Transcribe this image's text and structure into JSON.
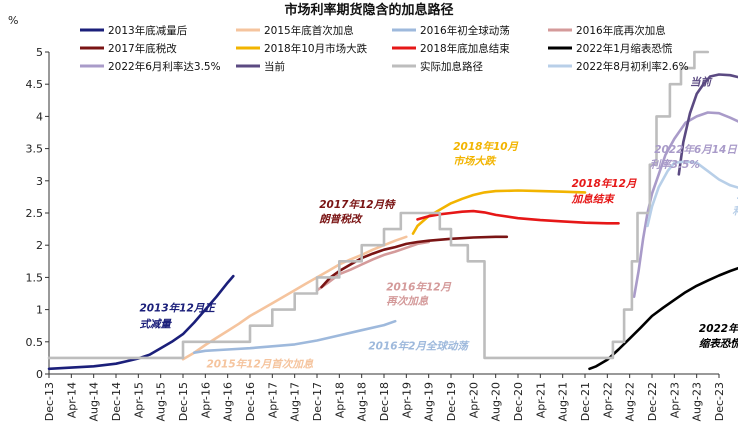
{
  "chart_data": {
    "type": "line",
    "title": "市场利率期货隐含的加息路径",
    "ylabel": "%",
    "ylim": [
      0,
      5
    ],
    "yticks": [
      "0",
      "0.5",
      "1",
      "1.5",
      "2",
      "2.5",
      "3",
      "3.5",
      "4",
      "4.5",
      "5"
    ],
    "xlabels": [
      "Dec-13",
      "Apr-14",
      "Aug-14",
      "Dec-14",
      "Apr-15",
      "Aug-15",
      "Dec-15",
      "Apr-16",
      "Aug-16",
      "Dec-16",
      "Apr-17",
      "Aug-17",
      "Dec-17",
      "Apr-18",
      "Aug-18",
      "Dec-18",
      "Apr-19",
      "Aug-19",
      "Dec-19",
      "Apr-20",
      "Aug-20",
      "Dec-20",
      "Apr-21",
      "Aug-21",
      "Dec-21",
      "Apr-22",
      "Aug-22",
      "Dec-22",
      "Apr-23",
      "Aug-23",
      "Dec-23"
    ],
    "series": [
      {
        "name": "2013年底减量后",
        "color": "#1b1f7a",
        "points": [
          [
            0,
            0.08
          ],
          [
            1,
            0.1
          ],
          [
            2,
            0.12
          ],
          [
            3,
            0.16
          ],
          [
            4,
            0.24
          ],
          [
            4.5,
            0.3
          ],
          [
            5,
            0.4
          ],
          [
            5.5,
            0.5
          ],
          [
            6,
            0.62
          ],
          [
            6.5,
            0.8
          ],
          [
            7,
            1.0
          ],
          [
            7.5,
            1.2
          ],
          [
            8,
            1.42
          ],
          [
            8.25,
            1.52
          ]
        ]
      },
      {
        "name": "2015年底首次加息",
        "color": "#f5c49e",
        "points": [
          [
            6,
            0.23
          ],
          [
            6.5,
            0.33
          ],
          [
            7,
            0.45
          ],
          [
            7.5,
            0.56
          ],
          [
            8,
            0.67
          ],
          [
            8.5,
            0.78
          ],
          [
            9,
            0.9
          ],
          [
            9.5,
            1.0
          ],
          [
            10,
            1.1
          ],
          [
            10.5,
            1.2
          ],
          [
            11,
            1.3
          ],
          [
            11.5,
            1.4
          ],
          [
            12,
            1.5
          ],
          [
            12.5,
            1.6
          ],
          [
            13,
            1.7
          ],
          [
            13.5,
            1.78
          ],
          [
            14,
            1.85
          ],
          [
            14.5,
            1.93
          ],
          [
            15,
            2.0
          ],
          [
            15.5,
            2.07
          ],
          [
            16,
            2.13
          ]
        ]
      },
      {
        "name": "2016年初全球动荡",
        "color": "#9eb9dc",
        "points": [
          [
            6.5,
            0.33
          ],
          [
            7,
            0.36
          ],
          [
            8,
            0.38
          ],
          [
            9,
            0.4
          ],
          [
            10,
            0.43
          ],
          [
            11,
            0.46
          ],
          [
            12,
            0.52
          ],
          [
            13,
            0.6
          ],
          [
            14,
            0.68
          ],
          [
            15,
            0.76
          ],
          [
            15.5,
            0.82
          ]
        ]
      },
      {
        "name": "2016年底再次加息",
        "color": "#d49a9a",
        "points": [
          [
            12,
            1.3
          ],
          [
            12.5,
            1.42
          ],
          [
            13,
            1.55
          ],
          [
            13.5,
            1.62
          ],
          [
            14,
            1.7
          ],
          [
            14.5,
            1.78
          ],
          [
            15,
            1.85
          ],
          [
            15.5,
            1.9
          ],
          [
            16,
            1.96
          ],
          [
            16.5,
            2.02
          ],
          [
            17,
            2.05
          ]
        ]
      },
      {
        "name": "2017年底税改",
        "color": "#7a1414",
        "points": [
          [
            12.2,
            1.35
          ],
          [
            12.6,
            1.5
          ],
          [
            13,
            1.6
          ],
          [
            13.5,
            1.7
          ],
          [
            14,
            1.8
          ],
          [
            14.5,
            1.87
          ],
          [
            15,
            1.93
          ],
          [
            15.5,
            1.97
          ],
          [
            16,
            2.02
          ],
          [
            16.5,
            2.05
          ],
          [
            17,
            2.07
          ],
          [
            18,
            2.1
          ],
          [
            19,
            2.12
          ],
          [
            20,
            2.13
          ],
          [
            20.5,
            2.13
          ]
        ]
      },
      {
        "name": "2018年10月市场大跌",
        "color": "#f2b400",
        "points": [
          [
            16.3,
            2.18
          ],
          [
            16.5,
            2.3
          ],
          [
            17,
            2.45
          ],
          [
            17.5,
            2.55
          ],
          [
            18,
            2.65
          ],
          [
            18.5,
            2.72
          ],
          [
            19,
            2.78
          ],
          [
            19.5,
            2.82
          ],
          [
            20,
            2.84
          ],
          [
            21,
            2.85
          ],
          [
            22,
            2.84
          ],
          [
            23,
            2.83
          ],
          [
            24,
            2.82
          ]
        ]
      },
      {
        "name": "2018年底加息结束",
        "color": "#e61717",
        "points": [
          [
            16.5,
            2.4
          ],
          [
            17,
            2.45
          ],
          [
            17.5,
            2.48
          ],
          [
            18,
            2.5
          ],
          [
            18.5,
            2.52
          ],
          [
            19,
            2.53
          ],
          [
            19.5,
            2.51
          ],
          [
            20,
            2.47
          ],
          [
            21,
            2.42
          ],
          [
            22,
            2.39
          ],
          [
            23,
            2.37
          ],
          [
            24,
            2.35
          ],
          [
            25,
            2.34
          ],
          [
            25.5,
            2.34
          ]
        ]
      },
      {
        "name": "2022年1月缩表恐慌",
        "color": "#000000",
        "points": [
          [
            24.2,
            0.08
          ],
          [
            24.5,
            0.12
          ],
          [
            25,
            0.22
          ],
          [
            25.5,
            0.38
          ],
          [
            26,
            0.55
          ],
          [
            26.5,
            0.72
          ],
          [
            27,
            0.9
          ],
          [
            27.5,
            1.03
          ],
          [
            28,
            1.15
          ],
          [
            28.5,
            1.27
          ],
          [
            29,
            1.37
          ],
          [
            29.5,
            1.45
          ],
          [
            30,
            1.53
          ],
          [
            30.5,
            1.6
          ],
          [
            31,
            1.66
          ],
          [
            31.5,
            1.72
          ],
          [
            32,
            1.75
          ],
          [
            32.3,
            1.78
          ]
        ]
      },
      {
        "name": "2022年6月利率达3.5%",
        "color": "#a99bc9",
        "points": [
          [
            26.2,
            1.2
          ],
          [
            26.4,
            1.6
          ],
          [
            26.6,
            2.1
          ],
          [
            26.8,
            2.5
          ],
          [
            27,
            2.8
          ],
          [
            27.3,
            3.1
          ],
          [
            27.6,
            3.4
          ],
          [
            28,
            3.65
          ],
          [
            28.5,
            3.9
          ],
          [
            29,
            4.0
          ],
          [
            29.5,
            4.06
          ],
          [
            30,
            4.05
          ],
          [
            30.5,
            3.98
          ],
          [
            31,
            3.9
          ],
          [
            31.5,
            3.83
          ],
          [
            32,
            3.76
          ]
        ]
      },
      {
        "name": "当前",
        "color": "#5b4a82",
        "points": [
          [
            28.2,
            3.1
          ],
          [
            28.4,
            3.6
          ],
          [
            28.7,
            4.05
          ],
          [
            29,
            4.35
          ],
          [
            29.3,
            4.5
          ],
          [
            29.6,
            4.62
          ],
          [
            30,
            4.65
          ],
          [
            30.5,
            4.64
          ],
          [
            31,
            4.6
          ],
          [
            31.5,
            4.58
          ],
          [
            31.8,
            4.48
          ],
          [
            32,
            4.45
          ],
          [
            32.2,
            4.43
          ]
        ]
      },
      {
        "name": "实际加息路径",
        "color": "#bdbdbd",
        "points": [
          [
            0,
            0.25
          ],
          [
            6,
            0.25
          ],
          [
            6,
            0.5
          ],
          [
            9,
            0.5
          ],
          [
            9,
            0.75
          ],
          [
            10,
            0.75
          ],
          [
            10,
            1.0
          ],
          [
            11,
            1.0
          ],
          [
            11,
            1.25
          ],
          [
            12,
            1.25
          ],
          [
            12,
            1.5
          ],
          [
            13,
            1.5
          ],
          [
            13,
            1.75
          ],
          [
            14,
            1.75
          ],
          [
            14,
            2.0
          ],
          [
            15,
            2.0
          ],
          [
            15,
            2.25
          ],
          [
            15.75,
            2.25
          ],
          [
            15.75,
            2.5
          ],
          [
            17.5,
            2.5
          ],
          [
            17.5,
            2.25
          ],
          [
            18,
            2.25
          ],
          [
            18,
            2.0
          ],
          [
            18.75,
            2.0
          ],
          [
            18.75,
            1.75
          ],
          [
            19.5,
            1.75
          ],
          [
            19.5,
            0.25
          ],
          [
            25.25,
            0.25
          ],
          [
            25.25,
            0.5
          ],
          [
            25.75,
            0.5
          ],
          [
            25.75,
            1.0
          ],
          [
            26.1,
            1.0
          ],
          [
            26.1,
            1.75
          ],
          [
            26.35,
            1.75
          ],
          [
            26.35,
            2.5
          ],
          [
            26.9,
            2.5
          ],
          [
            26.9,
            3.25
          ],
          [
            27.2,
            3.25
          ],
          [
            27.2,
            4.0
          ],
          [
            27.8,
            4.0
          ],
          [
            27.8,
            4.5
          ],
          [
            28.3,
            4.5
          ],
          [
            28.3,
            4.75
          ],
          [
            28.9,
            4.75
          ],
          [
            28.9,
            5.0
          ],
          [
            29.5,
            5.0
          ]
        ]
      },
      {
        "name": "2022年8月初利率2.6%",
        "color": "#b8cfe8",
        "points": [
          [
            26.8,
            2.3
          ],
          [
            27,
            2.6
          ],
          [
            27.3,
            2.9
          ],
          [
            27.7,
            3.15
          ],
          [
            28,
            3.28
          ],
          [
            28.5,
            3.3
          ],
          [
            29,
            3.28
          ],
          [
            29.5,
            3.15
          ],
          [
            30,
            3.02
          ],
          [
            30.5,
            2.93
          ],
          [
            31,
            2.88
          ],
          [
            31.5,
            2.83
          ],
          [
            32,
            2.8
          ]
        ]
      }
    ],
    "annotations": [
      {
        "text": "2013年12月正",
        "color": "#1b1f7a",
        "x": 4.05,
        "y": 0.97
      },
      {
        "text": "式减量",
        "color": "#1b1f7a",
        "x": 4.05,
        "y": 0.72
      },
      {
        "text": "2015年12月首次加息",
        "color": "#f5c49e",
        "x": 7.05,
        "y": 0.1
      },
      {
        "text": "2016年2月全球动荡",
        "color": "#9eb9dc",
        "x": 14.3,
        "y": 0.38
      },
      {
        "text": "2016年12月",
        "color": "#d49a9a",
        "x": 15.1,
        "y": 1.3
      },
      {
        "text": "再次加息",
        "color": "#d49a9a",
        "x": 15.1,
        "y": 1.08
      },
      {
        "text": "2017年12月特",
        "color": "#7a1414",
        "x": 12.1,
        "y": 2.58
      },
      {
        "text": "朗普税改",
        "color": "#7a1414",
        "x": 12.1,
        "y": 2.35
      },
      {
        "text": "2018年10月",
        "color": "#f2b400",
        "x": 18.1,
        "y": 3.48
      },
      {
        "text": "市场大跌",
        "color": "#f2b400",
        "x": 18.1,
        "y": 3.25
      },
      {
        "text": "2018年12月",
        "color": "#e61717",
        "x": 23.4,
        "y": 2.9
      },
      {
        "text": "加息结束",
        "color": "#e61717",
        "x": 23.4,
        "y": 2.66
      },
      {
        "text": "2022年6月14日",
        "color": "#a99bc9",
        "x": 27.1,
        "y": 3.43
      },
      {
        "text": "利率3.5%",
        "color": "#a99bc9",
        "x": 26.9,
        "y": 3.2
      },
      {
        "text": "2022年8月初",
        "color": "#b8cfe8",
        "x": 30.8,
        "y": 2.72
      },
      {
        "text": "利率2.6%",
        "color": "#b8cfe8",
        "x": 30.6,
        "y": 2.48
      },
      {
        "text": "当前",
        "color": "#5b4a82",
        "x": 28.7,
        "y": 4.48
      },
      {
        "text": "2022年1月",
        "color": "#000000",
        "x": 29.1,
        "y": 0.65
      },
      {
        "text": "缩表恐慌",
        "color": "#000000",
        "x": 29.1,
        "y": 0.42
      }
    ]
  }
}
